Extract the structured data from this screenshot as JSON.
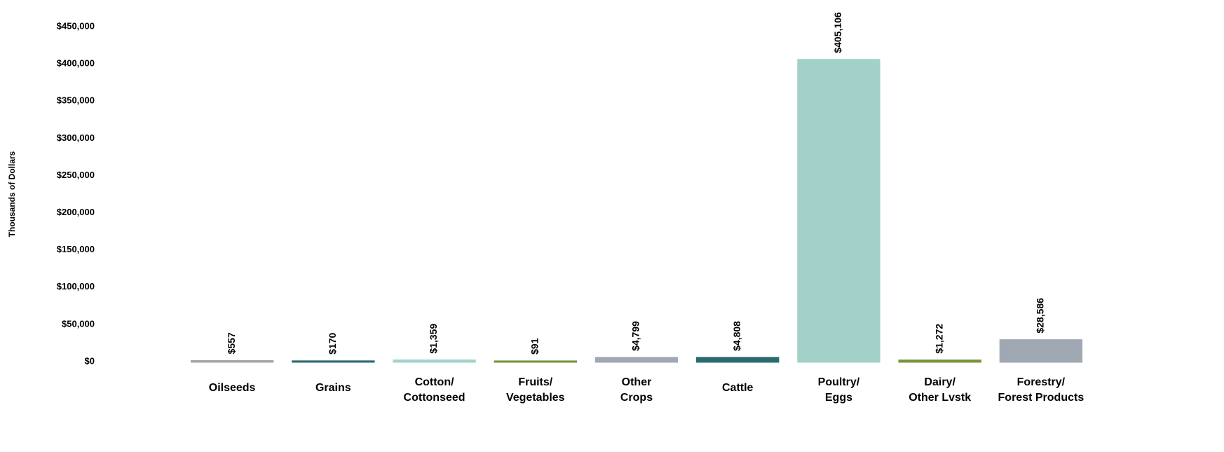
{
  "chart_data": {
    "type": "bar",
    "y_label": "Thousands of Dollars",
    "categories": [
      [
        "Oilseeds"
      ],
      [
        "Grains"
      ],
      [
        "Cotton/",
        "Cottonseed"
      ],
      [
        "Fruits/",
        "Vegetables"
      ],
      [
        "Other",
        "Crops"
      ],
      [
        "Cattle"
      ],
      [
        "Poultry/",
        "Eggs"
      ],
      [
        "Dairy/",
        "Other Lvstk"
      ],
      [
        "Forestry/",
        "Forest Products"
      ]
    ],
    "values": [
      557,
      170,
      1359,
      91,
      4799,
      4808,
      405106,
      1272,
      28586
    ],
    "value_labels": [
      "$557",
      "$170",
      "$1,359",
      "$91",
      "$4,799",
      "$4,808",
      "$405,106",
      "$1,272",
      "$28,586"
    ],
    "colors": [
      "#a6a6a6",
      "#2e6b73",
      "#a3d3cb",
      "#77933c",
      "#a0a8b4",
      "#2a6b6e",
      "#a2d1c9",
      "#77933c",
      "#a0a9b3"
    ],
    "ylim": [
      0,
      450000
    ],
    "yticks": [
      {
        "value": 0,
        "label": "$0"
      },
      {
        "value": 50000,
        "label": "$50,000"
      },
      {
        "value": 100000,
        "label": "$100,000"
      },
      {
        "value": 150000,
        "label": "$150,000"
      },
      {
        "value": 200000,
        "label": "$200,000"
      },
      {
        "value": 250000,
        "label": "$250,000"
      },
      {
        "value": 300000,
        "label": "$300,000"
      },
      {
        "value": 350000,
        "label": "$350,000"
      },
      {
        "value": 400000,
        "label": "$400,000"
      },
      {
        "value": 450000,
        "label": "$450,000"
      }
    ],
    "grid": false
  }
}
